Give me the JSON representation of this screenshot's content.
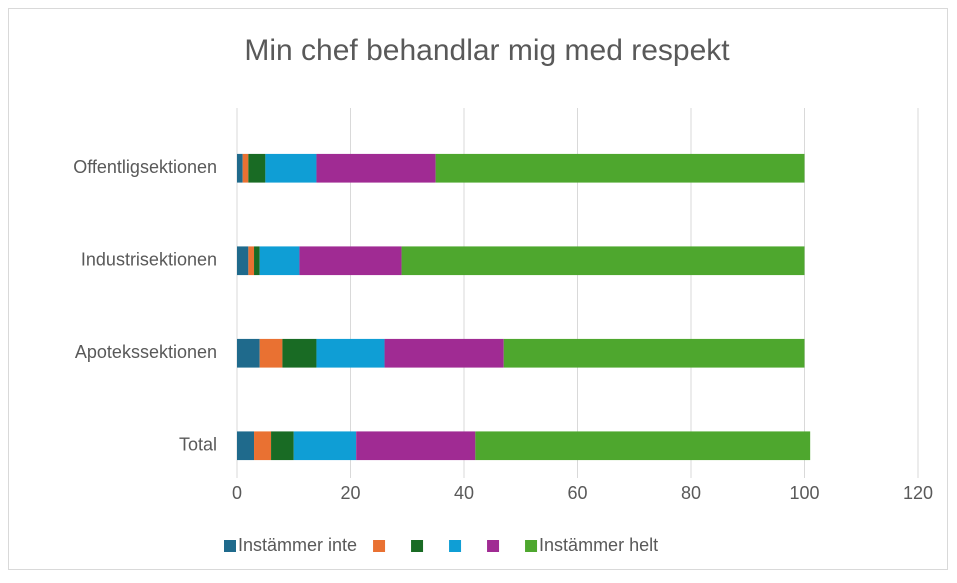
{
  "chart_data": {
    "type": "stacked-barh",
    "title": "Min chef behandlar mig med respekt",
    "categories": [
      "Offentligsektionen",
      "Industrisektionen",
      "Apotekssektionen",
      "Total"
    ],
    "series": [
      {
        "name": "Instämmer inte",
        "color": "#1f6a8c",
        "values": [
          1,
          2,
          4,
          3
        ]
      },
      {
        "name": null,
        "color": "#e97132",
        "values": [
          1,
          1,
          4,
          3
        ]
      },
      {
        "name": null,
        "color": "#196b24",
        "values": [
          3,
          1,
          6,
          4
        ]
      },
      {
        "name": null,
        "color": "#0f9ed5",
        "values": [
          9,
          7,
          12,
          11
        ]
      },
      {
        "name": null,
        "color": "#a02b93",
        "values": [
          21,
          18,
          21,
          21
        ]
      },
      {
        "name": "Instämmer helt",
        "color": "#4ea72e",
        "values": [
          65,
          71,
          53,
          59
        ]
      }
    ],
    "xlim": [
      0,
      120
    ],
    "xticks": [
      0,
      20,
      40,
      60,
      80,
      100,
      120
    ],
    "grid": true,
    "legend": "bottom"
  }
}
